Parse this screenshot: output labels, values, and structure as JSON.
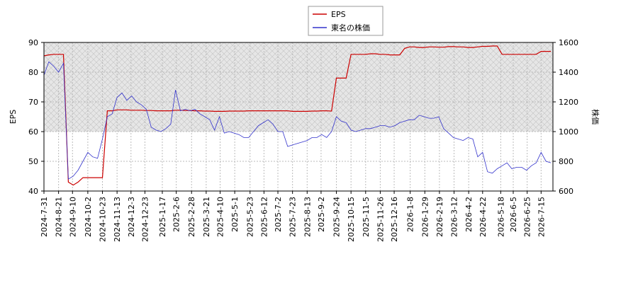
{
  "chart_data": {
    "type": "line",
    "y_label": "EPS",
    "y2_label": "株価",
    "x": [
      "2024-7-31",
      "2024-8-7",
      "2024-8-14",
      "2024-8-21",
      "2024-8-28",
      "2024-9-4",
      "2024-9-11",
      "2024-9-18",
      "2024-9-25",
      "2024-10-2",
      "2024-10-9",
      "2024-10-16",
      "2024-10-23",
      "2024-10-30",
      "2024-11-6",
      "2024-11-13",
      "2024-11-20",
      "2024-11-27",
      "2024-12-4",
      "2024-12-11",
      "2024-12-18",
      "2024-12-25",
      "2025-1-1",
      "2025-1-8",
      "2025-1-15",
      "2025-1-22",
      "2025-1-29",
      "2025-2-5",
      "2025-2-12",
      "2025-2-19",
      "2025-2-26",
      "2025-3-5",
      "2025-3-12",
      "2025-3-19",
      "2025-3-26",
      "2025-4-2",
      "2025-4-9",
      "2025-4-16",
      "2025-4-23",
      "2025-4-30",
      "2025-5-7",
      "2025-5-14",
      "2025-5-21",
      "2025-5-28",
      "2025-6-4",
      "2025-6-11",
      "2025-6-18",
      "2025-6-25",
      "2025-7-2",
      "2025-7-9",
      "2025-7-16",
      "2025-7-23",
      "2025-7-30",
      "2025-8-6",
      "2025-8-13",
      "2025-8-20",
      "2025-8-27",
      "2025-9-3",
      "2025-9-10",
      "2025-9-17",
      "2025-9-24",
      "2025-10-1",
      "2025-10-8",
      "2025-10-15",
      "2025-10-22",
      "2025-10-29",
      "2025-11-5",
      "2025-11-12",
      "2025-11-19",
      "2025-11-26",
      "2025-12-3",
      "2025-12-10",
      "2025-12-17",
      "2025-12-24",
      "2025-12-31",
      "2026-1-7",
      "2026-1-14",
      "2026-1-21",
      "2026-1-28",
      "2026-2-4",
      "2026-2-11",
      "2026-2-18",
      "2026-2-25",
      "2026-3-4",
      "2026-3-11",
      "2026-3-18",
      "2026-3-25",
      "2026-4-1",
      "2026-4-8",
      "2026-4-15",
      "2026-4-22",
      "2026-4-29",
      "2026-5-6",
      "2026-5-13",
      "2026-5-20",
      "2026-5-27",
      "2026-6-3",
      "2026-6-10",
      "2026-6-17",
      "2026-6-24",
      "2026-7-1",
      "2026-7-8",
      "2026-7-15",
      "2026-7-22",
      "2026-7-29"
    ],
    "series": [
      {
        "name": "EPS",
        "color": "#cc0000",
        "values": [
          85.5,
          85.8,
          86,
          86,
          86,
          43,
          42,
          43,
          44.5,
          44.5,
          44.5,
          44.5,
          44.5,
          67,
          67,
          67.3,
          67.3,
          67.3,
          67.2,
          67.2,
          67.2,
          67.1,
          67.1,
          67,
          67,
          67,
          67,
          67.2,
          67.2,
          67.1,
          67.1,
          67,
          67,
          66.9,
          66.9,
          66.8,
          66.8,
          66.8,
          66.9,
          66.9,
          66.9,
          66.9,
          67,
          67,
          67,
          67,
          67,
          67,
          67,
          67,
          67,
          66.8,
          66.8,
          66.8,
          66.8,
          66.9,
          66.9,
          67,
          67,
          66.9,
          78,
          78,
          78,
          86,
          86,
          86,
          86,
          86.2,
          86.2,
          86,
          86,
          85.8,
          85.8,
          85.8,
          88,
          88.5,
          88.5,
          88.3,
          88.3,
          88.5,
          88.5,
          88.4,
          88.4,
          88.6,
          88.6,
          88.5,
          88.5,
          88.3,
          88.3,
          88.5,
          88.7,
          88.7,
          88.8,
          88.8,
          86,
          86,
          86,
          86,
          86,
          86,
          86,
          86,
          87,
          87,
          87
        ]
      },
      {
        "name": "東名の株価",
        "color": "#3333cc",
        "axis": "y2",
        "values": [
          1380,
          1470,
          1440,
          1400,
          1460,
          680,
          700,
          740,
          800,
          860,
          830,
          820,
          950,
          1100,
          1120,
          1230,
          1260,
          1210,
          1240,
          1200,
          1180,
          1150,
          1030,
          1010,
          1000,
          1020,
          1050,
          1280,
          1140,
          1150,
          1140,
          1150,
          1120,
          1100,
          1080,
          1010,
          1100,
          990,
          1000,
          990,
          980,
          960,
          960,
          1000,
          1040,
          1060,
          1080,
          1050,
          1000,
          1000,
          900,
          910,
          920,
          930,
          940,
          960,
          960,
          980,
          960,
          1000,
          1100,
          1070,
          1060,
          1010,
          1000,
          1010,
          1020,
          1020,
          1030,
          1040,
          1040,
          1030,
          1040,
          1060,
          1070,
          1080,
          1080,
          1110,
          1100,
          1090,
          1090,
          1100,
          1020,
          990,
          960,
          950,
          940,
          960,
          950,
          830,
          860,
          730,
          720,
          750,
          770,
          790,
          750,
          760,
          760,
          740,
          770,
          790,
          860,
          800,
          790
        ]
      }
    ],
    "xlim": [
      "2024-7-31",
      "2026-8-1"
    ],
    "xticks": [
      "2024-7-31",
      "2024-8-21",
      "2024-9-10",
      "2024-10-2",
      "2024-10-23",
      "2024-11-13",
      "2024-12-3",
      "2024-12-23",
      "2025-1-17",
      "2025-2-6",
      "2025-2-28",
      "2025-3-21",
      "2025-4-10",
      "2025-5-1",
      "2025-5-23",
      "2025-6-12",
      "2025-7-2",
      "2025-7-23",
      "2025-8-13",
      "2025-9-2",
      "2025-9-24",
      "2025-10-15",
      "2025-11-5",
      "2025-11-26",
      "2025-12-16",
      "2026-1-8",
      "2026-1-29",
      "2026-2-19",
      "2026-3-12",
      "2026-4-2",
      "2026-4-22",
      "2026-5-18",
      "2026-6-5",
      "2026-6-25",
      "2026-7-15"
    ],
    "ylim": [
      40,
      90
    ],
    "yticks": [
      40,
      50,
      60,
      70,
      80,
      90
    ],
    "y2lim": [
      600,
      1600
    ],
    "y2ticks": [
      600,
      800,
      1000,
      1200,
      1400,
      1600
    ],
    "shade_ylim": [
      60,
      90
    ],
    "grid": true,
    "legend": "top"
  }
}
